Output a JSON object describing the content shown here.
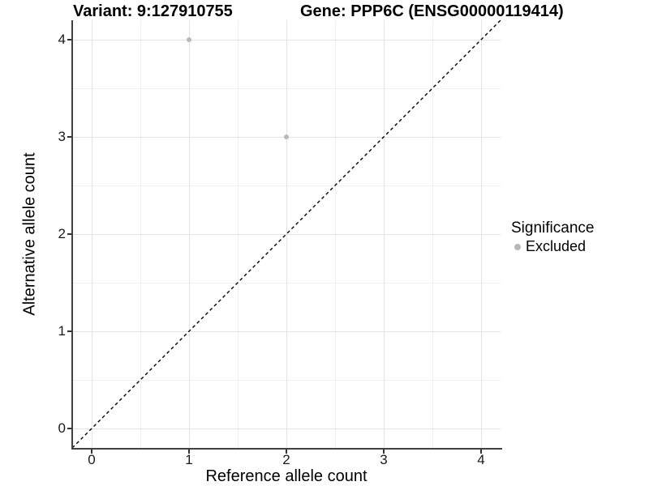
{
  "chart_data": {
    "type": "scatter",
    "title_variant": "Variant: 9:127910755",
    "title_gene": "Gene: PPP6C (ENSG00000119414)",
    "xlabel": "Reference allele count",
    "ylabel": "Alternative allele count",
    "xlim": [
      -0.2,
      4.2
    ],
    "ylim": [
      -0.2,
      4.2
    ],
    "xticks": [
      0,
      1,
      2,
      3,
      4
    ],
    "yticks": [
      0,
      1,
      2,
      3,
      4
    ],
    "x_minor_ticks": [
      0.5,
      1.5,
      2.5,
      3.5
    ],
    "y_minor_ticks": [
      0.5,
      1.5,
      2.5,
      3.5
    ],
    "grid": "major-and-minor",
    "identity_line": {
      "from": [
        -0.2,
        -0.2
      ],
      "to": [
        4.2,
        4.2
      ],
      "style": "dashed",
      "color": "#000000"
    },
    "series": [
      {
        "name": "Excluded",
        "color": "#b8b8b8",
        "points": [
          {
            "x": 1,
            "y": 4
          },
          {
            "x": 2,
            "y": 3
          }
        ]
      }
    ],
    "legend": {
      "title": "Significance",
      "position": "right",
      "entries": [
        {
          "label": "Excluded",
          "color": "#b8b8b8"
        }
      ]
    }
  },
  "colors": {
    "background": "#ffffff",
    "grid_major": "#e3e3e3",
    "grid_minor": "#f0f0f0",
    "axis_line": "#404040",
    "point": "#b8b8b8",
    "text": "#000000"
  }
}
